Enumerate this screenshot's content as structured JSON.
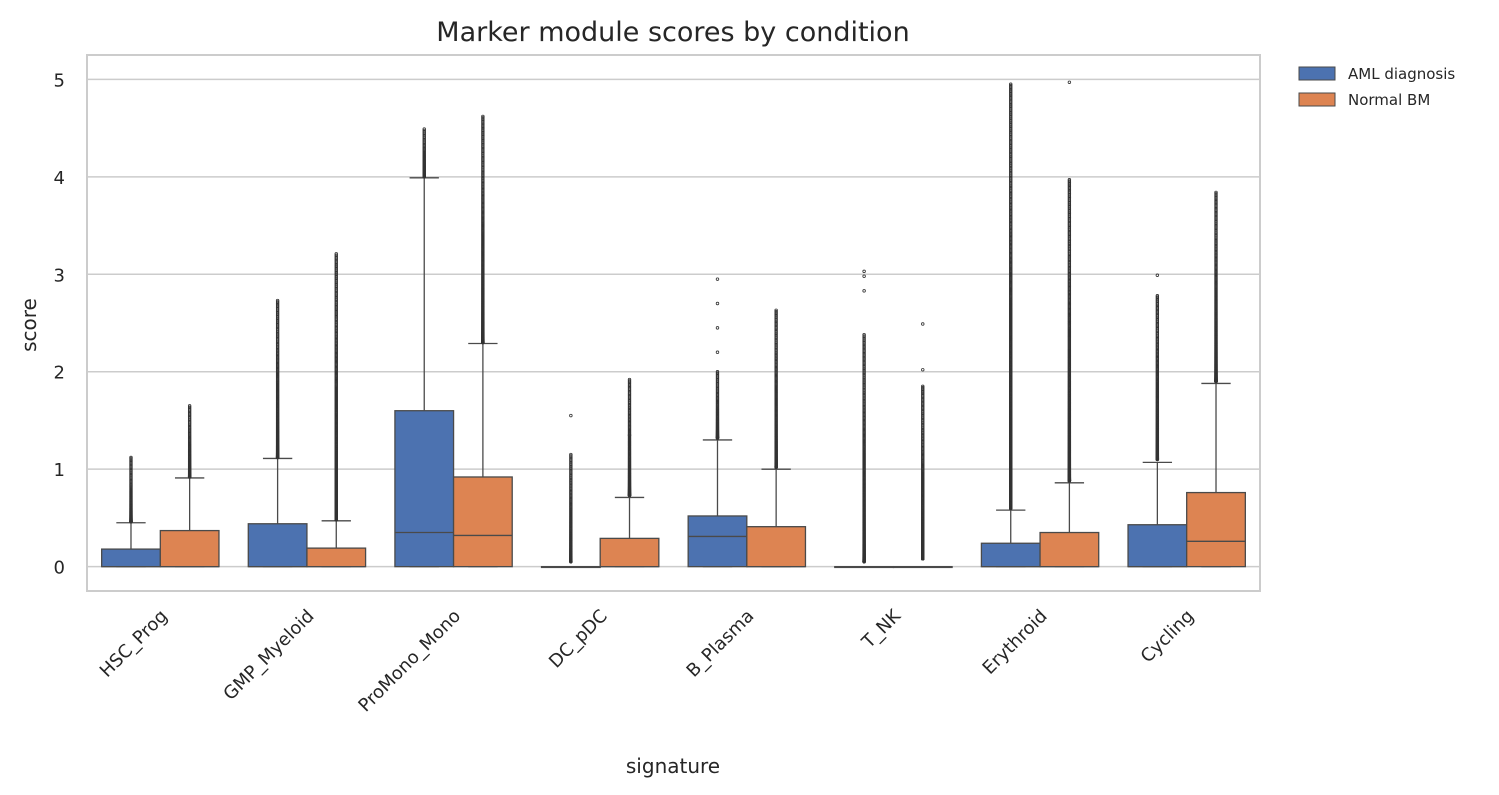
{
  "chart_data": {
    "type": "box",
    "title": "Marker module scores by condition",
    "xlabel": "signature",
    "ylabel": "score",
    "ylim": [
      -0.25,
      5.25
    ],
    "yticks": [
      0,
      1,
      2,
      3,
      4,
      5
    ],
    "grid": true,
    "legend_position": "outside-top-right",
    "categories": [
      "HSC_Prog",
      "GMP_Myeloid",
      "ProMono_Mono",
      "DC_pDC",
      "B_Plasma",
      "T_NK",
      "Erythroid",
      "Cycling"
    ],
    "series": [
      {
        "name": "AML diagnosis",
        "color": "#4c72b0",
        "boxes": [
          {
            "whisker_low": 0,
            "q1": 0,
            "median": 0,
            "q3": 0.18,
            "whisker_high": 0.45,
            "outlier_range": [
              0.46,
              1.12
            ]
          },
          {
            "whisker_low": 0,
            "q1": 0,
            "median": 0,
            "q3": 0.44,
            "whisker_high": 1.11,
            "outlier_range": [
              1.12,
              2.73
            ]
          },
          {
            "whisker_low": 0,
            "q1": 0,
            "median": 0.35,
            "q3": 1.6,
            "whisker_high": 3.99,
            "outlier_range": [
              4.0,
              4.49
            ]
          },
          {
            "whisker_low": 0,
            "q1": 0,
            "median": 0,
            "q3": 0,
            "whisker_high": 0,
            "outlier_range": [
              0.05,
              1.15
            ],
            "extra_outliers": [
              1.55
            ]
          },
          {
            "whisker_low": 0,
            "q1": 0,
            "median": 0.31,
            "q3": 0.52,
            "whisker_high": 1.3,
            "outlier_range": [
              1.32,
              2.0
            ],
            "extra_outliers": [
              2.2,
              2.45,
              2.7,
              2.95
            ]
          },
          {
            "whisker_low": 0,
            "q1": 0,
            "median": 0,
            "q3": 0,
            "whisker_high": 0,
            "outlier_range": [
              0.05,
              2.38
            ],
            "extra_outliers": [
              2.83,
              2.98,
              3.03
            ]
          },
          {
            "whisker_low": 0,
            "q1": 0,
            "median": 0,
            "q3": 0.24,
            "whisker_high": 0.58,
            "outlier_range": [
              0.6,
              4.95
            ]
          },
          {
            "whisker_low": 0,
            "q1": 0,
            "median": 0,
            "q3": 0.43,
            "whisker_high": 1.07,
            "outlier_range": [
              1.1,
              2.78
            ],
            "extra_outliers": [
              2.99
            ]
          }
        ]
      },
      {
        "name": "Normal BM",
        "color": "#dd8452",
        "boxes": [
          {
            "whisker_low": 0,
            "q1": 0,
            "median": 0,
            "q3": 0.37,
            "whisker_high": 0.91,
            "outlier_range": [
              0.92,
              1.65
            ]
          },
          {
            "whisker_low": 0,
            "q1": 0,
            "median": 0,
            "q3": 0.19,
            "whisker_high": 0.47,
            "outlier_range": [
              0.48,
              3.21
            ]
          },
          {
            "whisker_low": 0,
            "q1": 0,
            "median": 0.32,
            "q3": 0.92,
            "whisker_high": 2.29,
            "outlier_range": [
              2.3,
              4.62
            ]
          },
          {
            "whisker_low": 0,
            "q1": 0,
            "median": 0,
            "q3": 0.29,
            "whisker_high": 0.71,
            "outlier_range": [
              0.73,
              1.92
            ],
            "extra_outliers": [
              1.35
            ]
          },
          {
            "whisker_low": 0,
            "q1": 0,
            "median": 0,
            "q3": 0.41,
            "whisker_high": 1.0,
            "outlier_range": [
              1.02,
              2.63
            ]
          },
          {
            "whisker_low": 0,
            "q1": 0,
            "median": 0,
            "q3": 0,
            "whisker_high": 0,
            "outlier_range": [
              0.08,
              1.85
            ],
            "extra_outliers": [
              2.02,
              2.49
            ]
          },
          {
            "whisker_low": 0,
            "q1": 0,
            "median": 0,
            "q3": 0.35,
            "whisker_high": 0.86,
            "outlier_range": [
              0.88,
              3.97
            ],
            "extra_outliers": [
              4.97
            ]
          },
          {
            "whisker_low": 0,
            "q1": 0,
            "median": 0.26,
            "q3": 0.76,
            "whisker_high": 1.88,
            "outlier_range": [
              1.9,
              3.84
            ]
          }
        ]
      }
    ]
  }
}
